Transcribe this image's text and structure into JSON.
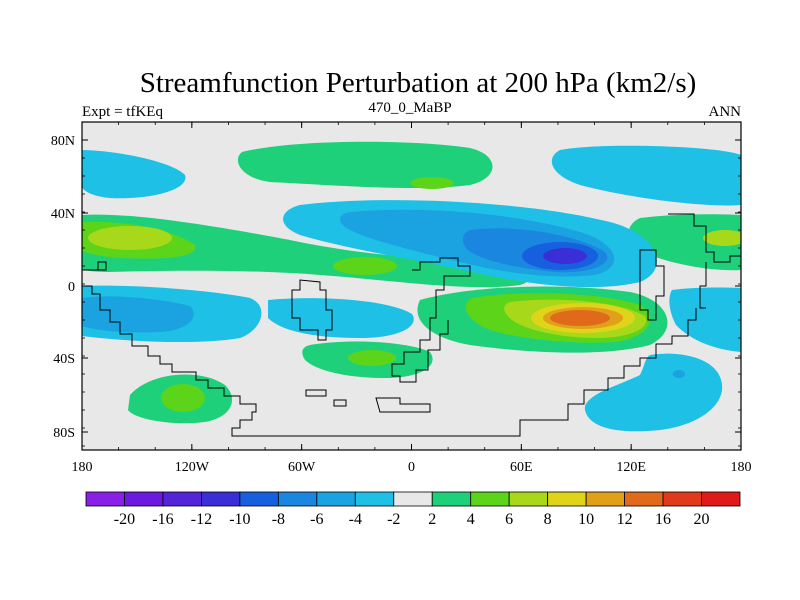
{
  "title": "Streamfunction Perturbation at 200 hPa (km2/s)",
  "left_label": "Expt = tfKEq",
  "center_label": "470_0_MaBP",
  "right_label": "ANN",
  "lat_ticks": [
    "80N",
    "40N",
    "0",
    "40S",
    "80S"
  ],
  "lon_ticks": [
    "180",
    "120W",
    "60W",
    "0",
    "60E",
    "120E",
    "180"
  ],
  "colorbar": {
    "colors": [
      "#8a1fe6",
      "#6d1ae0",
      "#5424d8",
      "#3a2fd6",
      "#1660e0",
      "#1a86e0",
      "#1aa3e0",
      "#1ec0e6",
      "#e8e8e8",
      "#1fd07a",
      "#5bd41a",
      "#a8d81a",
      "#e0d41a",
      "#e0a01a",
      "#e06a1a",
      "#e03a1a",
      "#e01a1a"
    ],
    "labels": [
      "-20",
      "-16",
      "-12",
      "-10",
      "-8",
      "-6",
      "-4",
      "-2",
      "2",
      "4",
      "6",
      "8",
      "10",
      "12",
      "16",
      "20"
    ]
  },
  "legend_colors": {
    "neutral": "#e8e8e8",
    "neg2": "#1ec0e6",
    "neg4": "#1aa3e0",
    "neg6": "#1a86e0",
    "neg8": "#1660e0",
    "neg10": "#3a2fd6",
    "pos2": "#1fd07a",
    "pos4": "#5bd41a",
    "pos6": "#a8d81a",
    "pos8": "#e0d41a",
    "pos10": "#e0a01a",
    "pos12": "#e06a1a"
  }
}
